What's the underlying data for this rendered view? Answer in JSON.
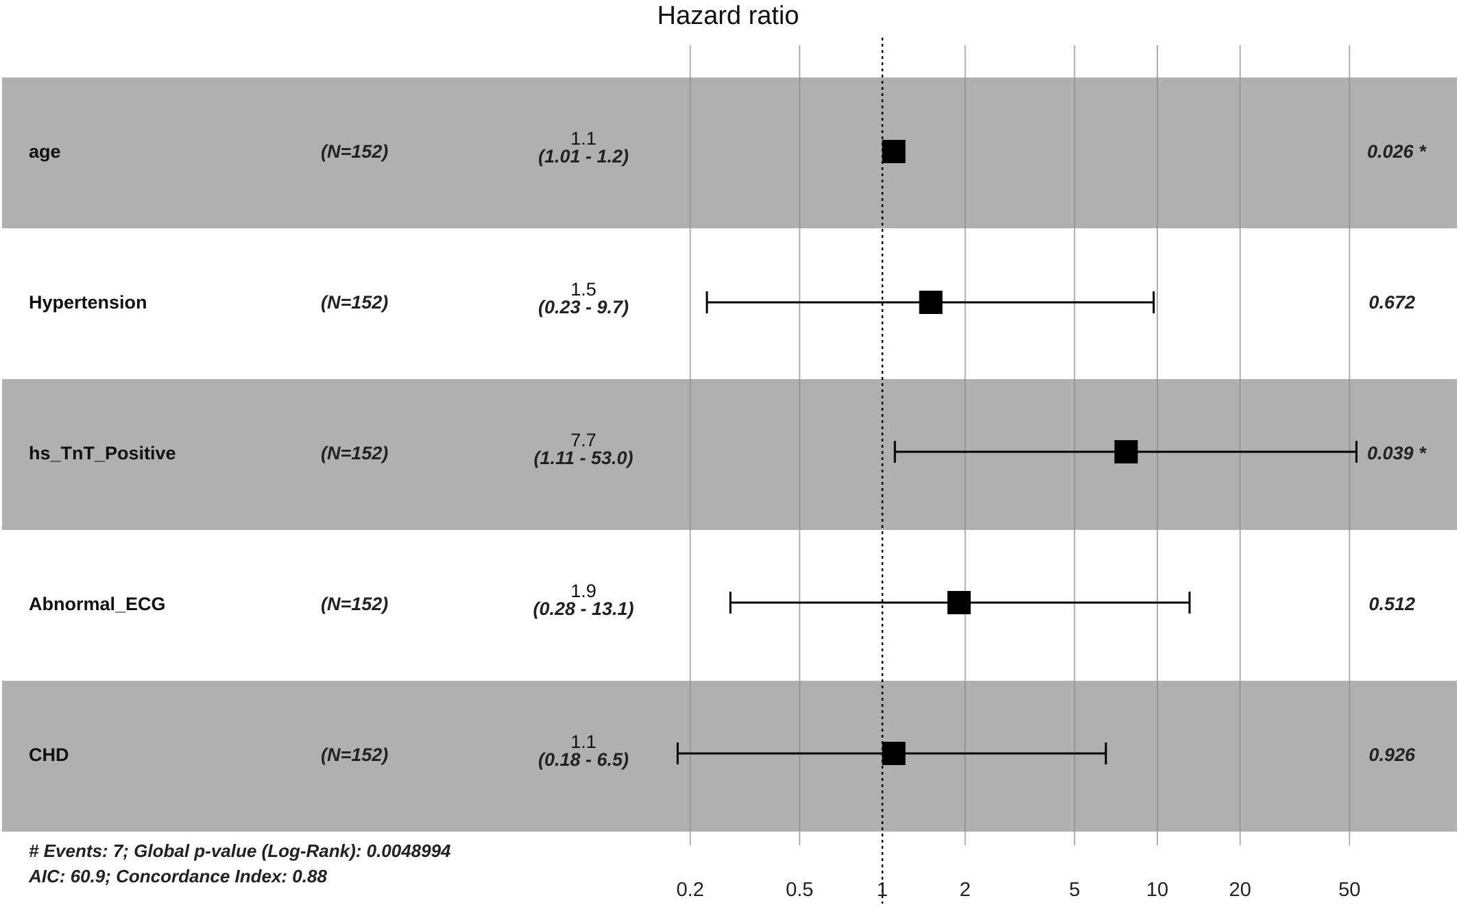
{
  "chart_data": {
    "type": "forest",
    "title": "Hazard ratio",
    "xscale": "log",
    "xlim": [
      0.15,
      80
    ],
    "xticks": [
      0.2,
      0.5,
      1,
      2,
      5,
      10,
      20,
      50
    ],
    "xtick_labels": [
      "0.2",
      "0.5",
      "1",
      "2",
      "5",
      "10",
      "20",
      "50"
    ],
    "reference_line": 1,
    "rows": [
      {
        "variable": "age",
        "n": "(N=152)",
        "hr_label": "1.1",
        "ci_label": "(1.01 -  1.2)",
        "p_label": "0.026 *",
        "hr": 1.1,
        "lower": 1.01,
        "upper": 1.2,
        "shaded": true
      },
      {
        "variable": "Hypertension",
        "n": "(N=152)",
        "hr_label": "1.5",
        "ci_label": "(0.23 -  9.7)",
        "p_label": "0.672",
        "hr": 1.5,
        "lower": 0.23,
        "upper": 9.7,
        "shaded": false
      },
      {
        "variable": "hs_TnT_Positive",
        "n": "(N=152)",
        "hr_label": "7.7",
        "ci_label": "(1.11 - 53.0)",
        "p_label": "0.039 *",
        "hr": 7.7,
        "lower": 1.11,
        "upper": 53.0,
        "shaded": true
      },
      {
        "variable": "Abnormal_ECG",
        "n": "(N=152)",
        "hr_label": "1.9",
        "ci_label": "(0.28 - 13.1)",
        "p_label": "0.512",
        "hr": 1.9,
        "lower": 0.28,
        "upper": 13.1,
        "shaded": false
      },
      {
        "variable": "CHD",
        "n": "(N=152)",
        "hr_label": "1.1",
        "ci_label": "(0.18 -  6.5)",
        "p_label": "0.926",
        "hr": 1.1,
        "lower": 0.18,
        "upper": 6.5,
        "shaded": true
      }
    ],
    "footer": [
      "# Events: 7; Global p-value (Log-Rank): 0.0048994",
      "AIC: 60.9; Concordance Index: 0.88"
    ],
    "colors": {
      "shade": "#b0b0b0",
      "grid": "#8c8c8c",
      "marker": "#000000"
    }
  }
}
